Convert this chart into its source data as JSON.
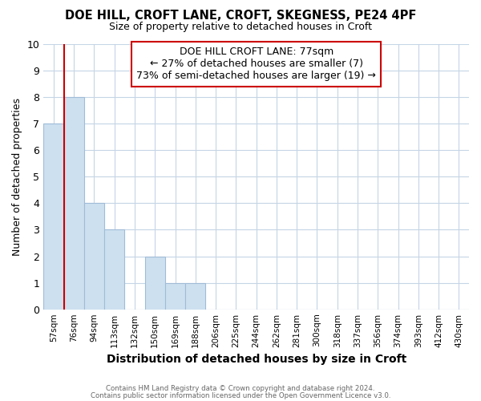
{
  "title": "DOE HILL, CROFT LANE, CROFT, SKEGNESS, PE24 4PF",
  "subtitle": "Size of property relative to detached houses in Croft",
  "xlabel": "Distribution of detached houses by size in Croft",
  "ylabel": "Number of detached properties",
  "bar_color": "#cde0f0",
  "bar_edge_color": "#a0bcd8",
  "marker_line_color": "#cc0000",
  "background_color": "#ffffff",
  "grid_color": "#c5d5e5",
  "categories": [
    "57sqm",
    "76sqm",
    "94sqm",
    "113sqm",
    "132sqm",
    "150sqm",
    "169sqm",
    "188sqm",
    "206sqm",
    "225sqm",
    "244sqm",
    "262sqm",
    "281sqm",
    "300sqm",
    "318sqm",
    "337sqm",
    "356sqm",
    "374sqm",
    "393sqm",
    "412sqm",
    "430sqm"
  ],
  "values": [
    7,
    8,
    4,
    3,
    0,
    2,
    1,
    1,
    0,
    0,
    0,
    0,
    0,
    0,
    0,
    0,
    0,
    0,
    0,
    0,
    0
  ],
  "marker_index": 1,
  "ylim": [
    0,
    10
  ],
  "yticks": [
    0,
    1,
    2,
    3,
    4,
    5,
    6,
    7,
    8,
    9,
    10
  ],
  "annotation_title": "DOE HILL CROFT LANE: 77sqm",
  "annotation_line1": "← 27% of detached houses are smaller (7)",
  "annotation_line2": "73% of semi-detached houses are larger (19) →",
  "footer_line1": "Contains HM Land Registry data © Crown copyright and database right 2024.",
  "footer_line2": "Contains public sector information licensed under the Open Government Licence v3.0."
}
